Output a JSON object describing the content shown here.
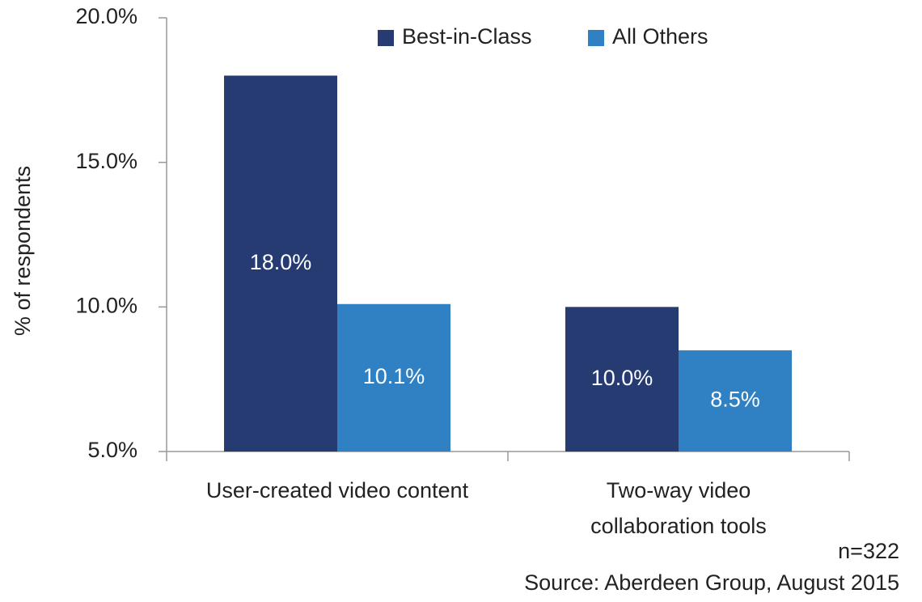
{
  "chart_data": {
    "type": "bar",
    "y_label": "% of respondents",
    "categories": [
      "User-created video content",
      "Two-way video\ncollaboration tools"
    ],
    "series": [
      {
        "name": "Best-in-Class",
        "color": "#263b72",
        "values": [
          18.0,
          10.0
        ],
        "value_labels": [
          "18.0%",
          "10.0%"
        ]
      },
      {
        "name": "All Others",
        "color": "#2f81c3",
        "values": [
          10.1,
          8.5
        ],
        "value_labels": [
          "10.1%",
          "8.5%"
        ]
      }
    ],
    "ylim": [
      5,
      20
    ],
    "yticks": [
      {
        "value": 5,
        "label": "5.0%"
      },
      {
        "value": 10,
        "label": "10.0%"
      },
      {
        "value": 15,
        "label": "15.0%"
      },
      {
        "value": 20,
        "label": "20.0%"
      }
    ],
    "notes": [
      "n=322",
      "Source: Aberdeen Group, August 2015"
    ]
  }
}
